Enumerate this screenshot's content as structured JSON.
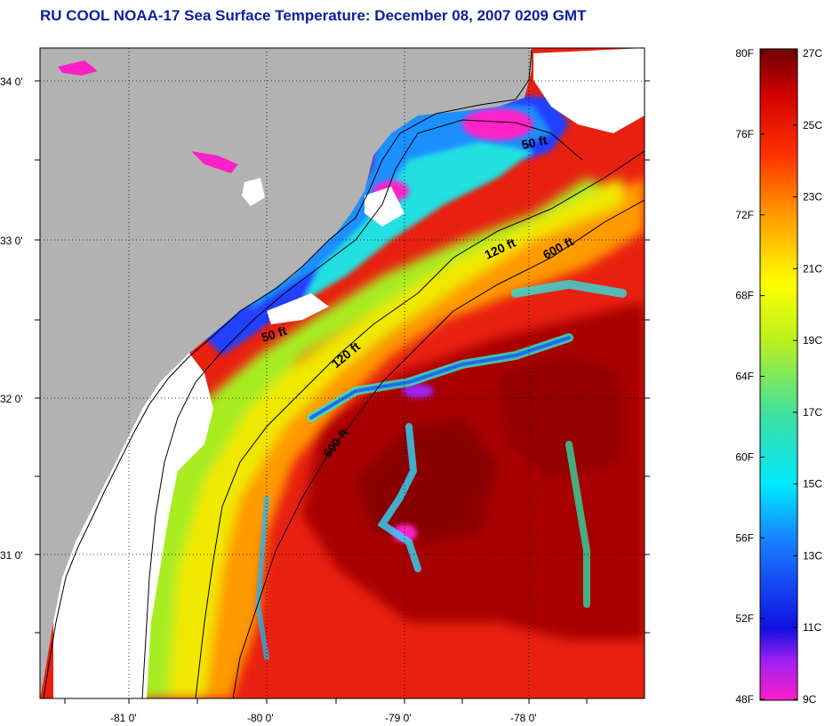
{
  "title": "RU COOL  NOAA-17  Sea Surface Temperature:  December 08, 2007 0209 GMT",
  "map": {
    "lon_ticks": [
      "-81 0'",
      "-80 0'",
      "-79 0'",
      "-78 0'"
    ],
    "lat_ticks": [
      "34 0'",
      "33 0'",
      "32 0'",
      "31 0'"
    ],
    "contours": [
      {
        "label": "50 ft",
        "id": "c50a"
      },
      {
        "label": "50 ft",
        "id": "c50b"
      },
      {
        "label": "120 ft",
        "id": "c120a"
      },
      {
        "label": "120 ft",
        "id": "c120b"
      },
      {
        "label": "600 ft",
        "id": "c600a"
      },
      {
        "label": "600 ft",
        "id": "c600b"
      }
    ],
    "colors": {
      "land": "#b2b2b2",
      "cloud": "#ffffff",
      "cold": "#1a2aff",
      "warm": "#e81a00",
      "hot": "#9b0000"
    }
  },
  "colorbar": {
    "fahrenheit": [
      "80F",
      "76F",
      "72F",
      "68F",
      "64F",
      "60F",
      "56F",
      "52F",
      "48F"
    ],
    "celsius": [
      "27C",
      "25C",
      "23C",
      "21C",
      "19C",
      "17C",
      "15C",
      "13C",
      "11C",
      "9C"
    ],
    "range_f": [
      48,
      80
    ],
    "range_c": [
      9,
      27
    ]
  }
}
